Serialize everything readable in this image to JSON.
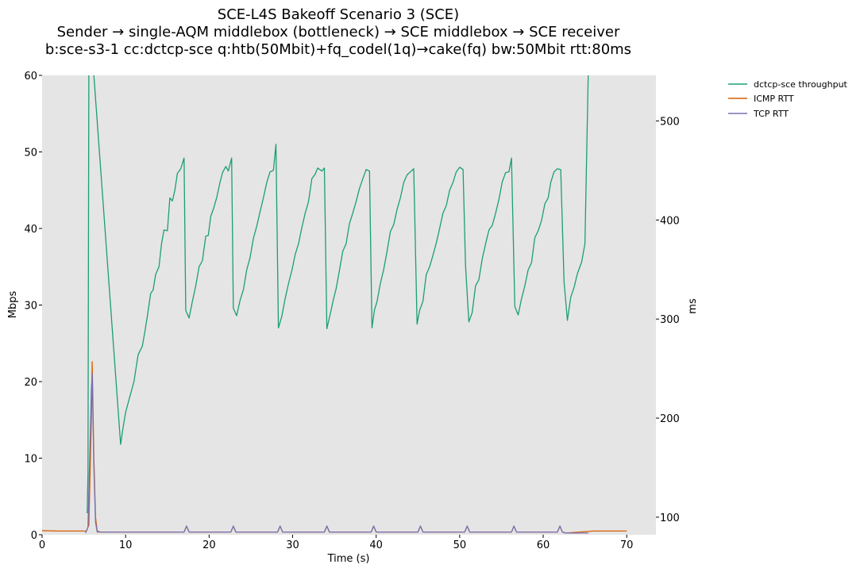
{
  "chart_data": {
    "type": "line",
    "title": [
      "SCE-L4S Bakeoff Scenario 3 (SCE)",
      "Sender → single-AQM middlebox (bottleneck) → SCE middlebox → SCE receiver",
      "b:sce-s3-1 cc:dctcp-sce q:htb(50Mbit)+fq_codel(1q)→cake(fq) bw:50Mbit rtt:80ms"
    ],
    "xlabel": "Time (s)",
    "ylabel_left": "Mbps",
    "ylabel_right": "ms",
    "xlim": [
      0,
      73.5
    ],
    "ylim_left": [
      0,
      60
    ],
    "ylim_right": [
      82.3,
      546
    ],
    "xticks": [
      0,
      10,
      20,
      30,
      40,
      50,
      60,
      70
    ],
    "yticks_left": [
      0,
      10,
      20,
      30,
      40,
      50,
      60
    ],
    "yticks_right": [
      100,
      200,
      300,
      400,
      500
    ],
    "grid": false,
    "background": "#e5e5e5",
    "legend_position": "outside-top-right",
    "series": [
      {
        "name": "dctcp-sce throughput",
        "axis": "left",
        "color": "#1b9e77",
        "x": [
          5.4,
          5.5,
          5.6,
          6.2,
          9.4,
          9.7,
          10.0,
          10.5,
          11.0,
          11.5,
          12.0,
          12.3,
          12.6,
          13.0,
          13.3,
          13.6,
          14.0,
          14.3,
          14.6,
          15.0,
          15.3,
          15.6,
          15.9,
          16.2,
          16.6,
          17.0,
          17.2,
          17.6,
          18.0,
          18.4,
          18.8,
          19.2,
          19.6,
          19.9,
          20.2,
          20.5,
          20.9,
          21.3,
          21.6,
          22.0,
          22.3,
          22.7,
          22.9,
          23.3,
          23.7,
          24.1,
          24.5,
          24.9,
          25.3,
          25.7,
          26.1,
          26.5,
          26.9,
          27.3,
          27.7,
          28.0,
          28.3,
          28.7,
          29.1,
          29.5,
          29.9,
          30.3,
          30.7,
          31.1,
          31.5,
          31.9,
          32.3,
          32.7,
          33.0,
          33.5,
          33.8,
          34.1,
          34.5,
          34.9,
          35.2,
          35.6,
          36.0,
          36.4,
          36.8,
          37.2,
          37.6,
          38.0,
          38.4,
          38.8,
          39.2,
          39.5,
          39.8,
          40.1,
          40.5,
          40.9,
          41.3,
          41.7,
          42.1,
          42.5,
          42.9,
          43.3,
          43.7,
          44.1,
          44.5,
          44.9,
          45.2,
          45.6,
          46.0,
          46.4,
          46.8,
          47.2,
          47.6,
          48.0,
          48.4,
          48.8,
          49.2,
          49.6,
          50.0,
          50.4,
          50.7,
          51.1,
          51.5,
          51.9,
          52.3,
          52.7,
          53.1,
          53.5,
          53.9,
          54.3,
          54.7,
          55.1,
          55.5,
          55.9,
          56.2,
          56.6,
          57.0,
          57.4,
          57.8,
          58.2,
          58.6,
          59.0,
          59.4,
          59.8,
          60.2,
          60.6,
          60.9,
          61.3,
          61.7,
          62.1,
          62.5,
          62.9,
          63.3,
          63.7,
          64.1,
          64.6,
          65.0,
          65.4
        ],
        "y": [
          2.8,
          8.0,
          62.0,
          60.0,
          11.8,
          14.0,
          16.0,
          18.0,
          20.0,
          23.5,
          24.6,
          26.5,
          28.5,
          31.5,
          32.0,
          34.0,
          35.0,
          38.0,
          39.8,
          39.7,
          44.0,
          43.6,
          45.0,
          47.2,
          47.8,
          49.2,
          29.3,
          28.3,
          30.5,
          32.5,
          35.0,
          35.8,
          39.0,
          39.1,
          41.6,
          42.5,
          44.0,
          46.0,
          47.3,
          48.1,
          47.5,
          49.2,
          29.6,
          28.6,
          30.6,
          32.0,
          34.6,
          36.2,
          38.7,
          40.3,
          42.2,
          44.0,
          46.0,
          47.4,
          47.6,
          51.0,
          27.0,
          28.5,
          30.8,
          32.8,
          34.5,
          36.6,
          38.0,
          40.1,
          42.0,
          43.5,
          46.5,
          47.1,
          47.9,
          47.5,
          47.9,
          26.9,
          28.8,
          30.8,
          32.1,
          34.5,
          37.0,
          38.0,
          40.6,
          42.0,
          43.5,
          45.2,
          46.5,
          47.7,
          47.5,
          27.0,
          29.4,
          30.4,
          32.8,
          34.6,
          37.0,
          39.6,
          40.5,
          42.5,
          44.0,
          46.0,
          47.0,
          47.4,
          47.8,
          27.5,
          29.3,
          30.5,
          34.0,
          35.0,
          36.5,
          38.1,
          40.0,
          42.0,
          43.0,
          45.0,
          46.0,
          47.4,
          48.0,
          47.7,
          35.2,
          27.8,
          29.0,
          32.5,
          33.3,
          36.0,
          38.0,
          39.8,
          40.4,
          42.0,
          43.8,
          46.1,
          47.3,
          47.4,
          49.2,
          29.8,
          28.7,
          30.8,
          32.5,
          34.6,
          35.5,
          38.8,
          39.7,
          41.0,
          43.2,
          44.0,
          46.0,
          47.4,
          47.8,
          47.7,
          33.0,
          28.0,
          31.0,
          32.3,
          34.1,
          35.6,
          38.0,
          60.5
        ]
      },
      {
        "name": "ICMP RTT",
        "axis": "right",
        "color": "#d95f02",
        "x": [
          0,
          2,
          4,
          5.3,
          5.6,
          5.9,
          6.0,
          6.2,
          6.4,
          6.6,
          7,
          10,
          17.0,
          17.3,
          17.6,
          22.6,
          22.9,
          23.2,
          28.2,
          28.5,
          28.8,
          33.8,
          34.1,
          34.4,
          39.4,
          39.7,
          40.0,
          45.0,
          45.3,
          45.6,
          50.6,
          50.9,
          51.2,
          56.2,
          56.5,
          56.8,
          61.7,
          62.0,
          62.3,
          62.7,
          66,
          70
        ],
        "y": [
          86.5,
          86,
          86,
          86,
          92,
          200,
          257,
          160,
          100,
          86,
          85,
          85,
          85,
          91,
          85,
          85,
          91,
          85,
          85,
          91,
          85,
          85,
          91,
          85,
          85,
          91,
          85,
          85,
          91,
          85,
          85,
          91,
          85,
          85,
          91,
          85,
          85,
          91,
          85,
          84,
          86,
          86
        ]
      },
      {
        "name": "TCP RTT",
        "axis": "right",
        "color": "#7570b3",
        "x": [
          5.2,
          5.5,
          5.9,
          6.0,
          6.2,
          6.4,
          6.6,
          7,
          10,
          17.0,
          17.3,
          17.6,
          22.6,
          22.9,
          23.2,
          28.2,
          28.5,
          28.8,
          33.8,
          34.1,
          34.4,
          39.4,
          39.7,
          40.0,
          45.0,
          45.3,
          45.6,
          50.6,
          50.9,
          51.2,
          56.2,
          56.5,
          56.8,
          61.7,
          62.0,
          62.3,
          62.7,
          65.4
        ],
        "y": [
          84,
          90,
          230,
          245,
          150,
          95,
          85,
          85,
          85,
          85,
          91,
          85,
          85,
          91,
          85,
          85,
          91,
          85,
          85,
          91,
          85,
          85,
          91,
          85,
          85,
          91,
          85,
          85,
          91,
          85,
          85,
          91,
          85,
          85,
          91,
          85,
          84,
          84
        ]
      }
    ]
  }
}
